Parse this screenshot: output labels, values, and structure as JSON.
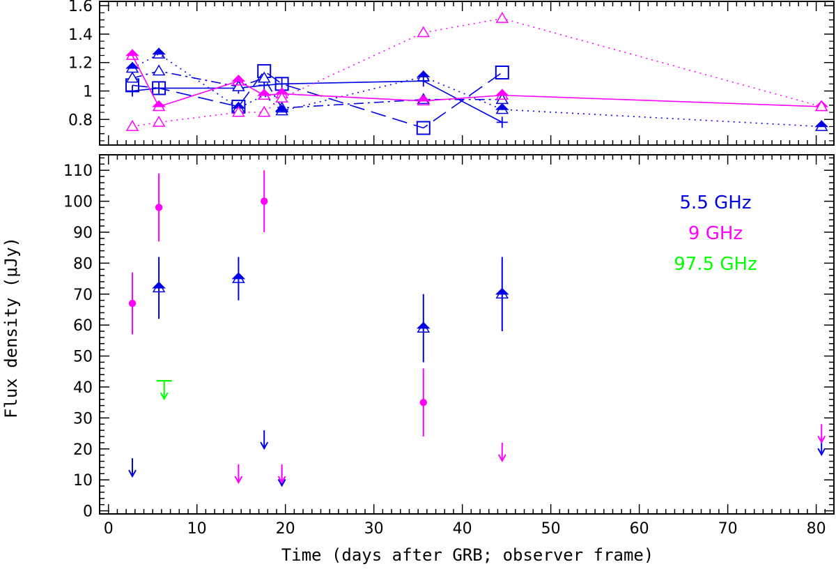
{
  "chart_data": [
    {
      "panel": "top",
      "type": "line",
      "title": "",
      "xlabel": "",
      "ylabel": "",
      "xlim": [
        -1,
        82
      ],
      "ylim": [
        0.62,
        1.63
      ],
      "x_ticks": [
        "0",
        "10",
        "20",
        "30",
        "40",
        "50",
        "60",
        "70",
        "80"
      ],
      "y_ticks": [
        {
          "v": 0.8,
          "label": "0.8"
        },
        {
          "v": 1.0,
          "label": "1"
        },
        {
          "v": 1.2,
          "label": "1.2"
        },
        {
          "v": 1.4,
          "label": "1.4"
        },
        {
          "v": 1.6,
          "label": "1.6"
        }
      ],
      "series": [
        {
          "name": "blue plus, solid",
          "color": "#0000e6",
          "marker": "plus",
          "dash": "solid",
          "x": [
            2.7,
            5.7,
            14.7,
            17.6,
            19.6,
            35.6,
            44.5
          ],
          "y": [
            1.0,
            1.02,
            1.02,
            1.04,
            1.05,
            1.07,
            0.78
          ]
        },
        {
          "name": "blue open square, long dash",
          "color": "#0000e6",
          "marker": "square-open",
          "dash": "longdash",
          "x": [
            2.7,
            5.7,
            14.7,
            17.6,
            19.6,
            35.6,
            44.5
          ],
          "y": [
            1.04,
            1.02,
            0.89,
            1.14,
            1.05,
            0.74,
            1.13
          ]
        },
        {
          "name": "blue open triangle, dash-dot",
          "color": "#0000e6",
          "marker": "triangle-open",
          "dash": "dashdot",
          "x": [
            2.7,
            5.7,
            14.7,
            17.6,
            19.6,
            35.6,
            44.5
          ],
          "y": [
            1.09,
            1.14,
            1.03,
            1.09,
            0.88,
            0.94,
            0.94
          ]
        },
        {
          "name": "blue filled triangle, dotted",
          "color": "#0000e6",
          "marker": "triangle-filled",
          "dash": "dotted",
          "x": [
            2.7,
            5.7,
            14.7,
            17.6,
            19.6,
            35.6,
            44.5,
            80.6
          ],
          "y": [
            1.16,
            1.26,
            0.88,
            0.97,
            0.86,
            1.1,
            0.87,
            0.75
          ]
        },
        {
          "name": "magenta filled triangle, solid",
          "color": "#ff00ff",
          "marker": "triangle-filled",
          "dash": "solid",
          "x": [
            2.7,
            5.7,
            14.7,
            17.6,
            19.6,
            35.6,
            44.5,
            80.6
          ],
          "y": [
            1.25,
            0.89,
            1.07,
            0.97,
            0.98,
            0.93,
            0.97,
            0.89
          ]
        },
        {
          "name": "magenta open triangle, dotted",
          "color": "#ff00ff",
          "marker": "triangle-open",
          "dash": "dotted",
          "x": [
            2.7,
            5.7,
            14.7,
            17.6,
            19.6,
            35.6,
            44.5,
            80.6
          ],
          "y": [
            0.75,
            0.78,
            0.85,
            0.85,
            0.95,
            1.41,
            1.51,
            0.89
          ]
        }
      ]
    },
    {
      "panel": "bottom",
      "type": "scatter",
      "title": "",
      "xlabel": "Time (days after GRB; observer frame)",
      "ylabel": "Flux density (μJy)",
      "xlim": [
        -1,
        82
      ],
      "ylim": [
        -1,
        115
      ],
      "x_ticks": [
        "0",
        "10",
        "20",
        "30",
        "40",
        "50",
        "60",
        "70",
        "80"
      ],
      "y_ticks": [
        "0",
        "10",
        "20",
        "30",
        "40",
        "50",
        "60",
        "70",
        "80",
        "90",
        "100",
        "110"
      ],
      "series": [
        {
          "name": "5.5 GHz",
          "color": "#0000e6",
          "marker": "triangle-filled",
          "detections": [
            {
              "x": 5.7,
              "y": 72,
              "err": 10
            },
            {
              "x": 14.7,
              "y": 75,
              "err": 7
            },
            {
              "x": 35.6,
              "y": 59,
              "err": 11
            },
            {
              "x": 44.5,
              "y": 70,
              "err": 12
            }
          ],
          "upper_limits": [
            {
              "x": 2.7,
              "y": 17
            },
            {
              "x": 17.6,
              "y": 26
            },
            {
              "x": 19.6,
              "y": 14
            },
            {
              "x": 80.6,
              "y": 24
            }
          ]
        },
        {
          "name": "9 GHz",
          "color": "#ff00ff",
          "marker": "circle-filled",
          "detections": [
            {
              "x": 2.7,
              "y": 67,
              "err": 10
            },
            {
              "x": 5.7,
              "y": 98,
              "err": 11
            },
            {
              "x": 17.6,
              "y": 100,
              "err": 10
            },
            {
              "x": 35.6,
              "y": 35,
              "err": 11
            }
          ],
          "upper_limits": [
            {
              "x": 14.7,
              "y": 15
            },
            {
              "x": 19.6,
              "y": 15
            },
            {
              "x": 44.5,
              "y": 22
            },
            {
              "x": 80.6,
              "y": 28
            }
          ]
        },
        {
          "name": "97.5 GHz",
          "color": "#00ff00",
          "marker": "none",
          "detections": [],
          "upper_limits": [
            {
              "x": 6.3,
              "y": 42,
              "bar": true
            }
          ]
        }
      ],
      "legend": [
        {
          "label": "5.5 GHz",
          "color": "#0000e6"
        },
        {
          "label": "9 GHz",
          "color": "#ff00ff"
        },
        {
          "label": "97.5 GHz",
          "color": "#00ff00"
        }
      ],
      "legend_position": "top-right"
    }
  ]
}
